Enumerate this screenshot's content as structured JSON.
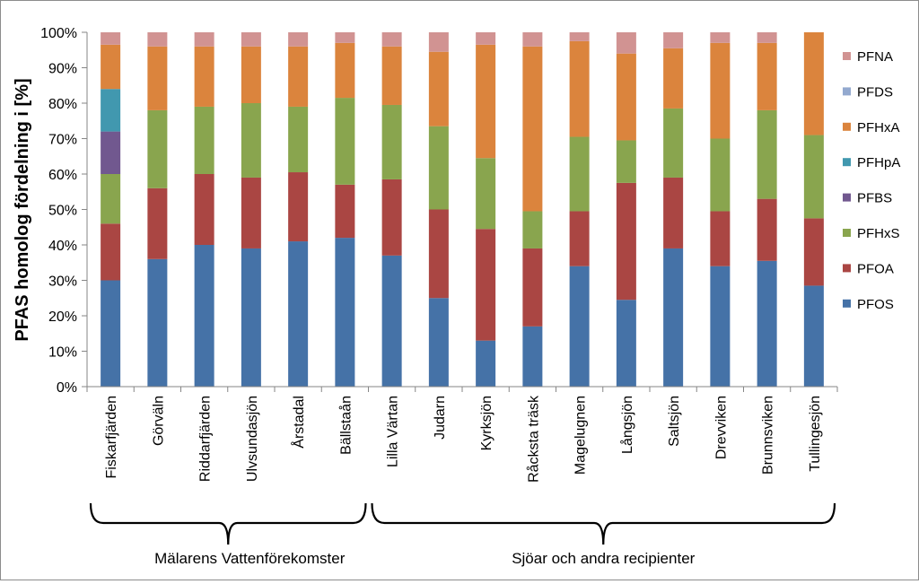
{
  "chart_data": {
    "type": "stacked-bar-100",
    "ylabel": "PFAS homolog fördelning i [%]",
    "ylim": [
      0,
      100
    ],
    "yticks": [
      "0%",
      "10%",
      "20%",
      "30%",
      "40%",
      "50%",
      "60%",
      "70%",
      "80%",
      "90%",
      "100%"
    ],
    "grid": false,
    "legend_placement": "right",
    "categories": [
      "Fiskarfjärden",
      "Görväln",
      "Riddarfjärden",
      "Ulvsundasjön",
      "Årstadal",
      "Bällstaån",
      "Lilla Värtan",
      "Judarn",
      "Kyrksjön",
      "Råcksta träsk",
      "Magelugnen",
      "Långsjön",
      "Saltsjön",
      "Drevviken",
      "Brunnsviken",
      "Tullingesjön"
    ],
    "series": [
      {
        "name": "PFOS",
        "color": "#4572A7",
        "values": [
          30,
          36,
          40,
          39,
          41,
          42,
          37,
          25,
          13,
          17,
          34,
          24.5,
          39,
          34,
          35.5,
          28.5
        ]
      },
      {
        "name": "PFOA",
        "color": "#AA4643",
        "values": [
          16,
          20,
          20,
          20,
          19.5,
          15,
          21.5,
          25,
          31.5,
          22,
          15.5,
          33,
          20,
          15.5,
          17.5,
          19
        ]
      },
      {
        "name": "PFHxS",
        "color": "#89A54E",
        "values": [
          14,
          22,
          19,
          21,
          18.5,
          24.5,
          21,
          23.5,
          20,
          10.5,
          21,
          12,
          19.5,
          20.5,
          25,
          23.5
        ]
      },
      {
        "name": "PFBS",
        "color": "#71588F",
        "values": [
          12,
          0,
          0,
          0,
          0,
          0,
          0,
          0,
          0,
          0,
          0,
          0,
          0,
          0,
          0,
          0
        ]
      },
      {
        "name": "PFHpA",
        "color": "#4198AF",
        "values": [
          12,
          0,
          0,
          0,
          0,
          0,
          0,
          0,
          0,
          0,
          0,
          0,
          0,
          0,
          0,
          0
        ]
      },
      {
        "name": "PFHxA",
        "color": "#DB843D",
        "values": [
          12.5,
          18,
          17,
          16,
          17,
          15.5,
          16.5,
          21,
          32,
          46.5,
          27,
          24.5,
          17,
          27,
          19,
          29
        ]
      },
      {
        "name": "PFDS",
        "color": "#93A9CF",
        "values": [
          0,
          0,
          0,
          0,
          0,
          0,
          0,
          0,
          0,
          0,
          0,
          0,
          0,
          0,
          0,
          0
        ]
      },
      {
        "name": "PFNA",
        "color": "#D19392",
        "values": [
          3.5,
          4,
          4,
          4,
          4,
          3,
          4,
          5.5,
          3.5,
          4,
          2.5,
          6,
          4.5,
          3,
          3,
          0
        ]
      }
    ],
    "legend_order": [
      "PFNA",
      "PFDS",
      "PFHxA",
      "PFHpA",
      "PFBS",
      "PFHxS",
      "PFOA",
      "PFOS"
    ],
    "groups": [
      {
        "label": "Mälarens Vattenförekomster",
        "first": 0,
        "last": 5
      },
      {
        "label": "Sjöar och andra recipienter",
        "first": 6,
        "last": 15
      }
    ]
  }
}
